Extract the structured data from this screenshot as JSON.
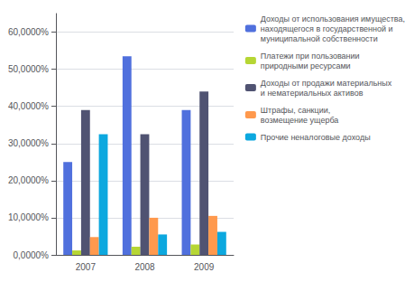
{
  "chart_data": {
    "type": "bar",
    "categories": [
      "2007",
      "2008",
      "2009"
    ],
    "series": [
      {
        "name": "Доходы от использования имущества,\nнаходящегося в государственной и\nмуниципальной собственности",
        "values": [
          0.25,
          0.535,
          0.39
        ]
      },
      {
        "name": "Платежи при пользовании\nприродными ресурсами",
        "values": [
          0.012,
          0.022,
          0.028
        ]
      },
      {
        "name": "Доходы от продажи материальных\nи нематериальных активов",
        "values": [
          0.39,
          0.325,
          0.44
        ]
      },
      {
        "name": "Штрафы, санкции,\nвозмещение ущерба",
        "values": [
          0.048,
          0.1,
          0.105
        ]
      },
      {
        "name": "Прочие неналоговые доходы",
        "values": [
          0.325,
          0.055,
          0.062
        ]
      }
    ],
    "ylim": [
      0,
      0.65
    ],
    "yticks": [
      {
        "value": 0,
        "label": "0,0000%"
      },
      {
        "value": 0.1,
        "label": "10,0000%"
      },
      {
        "value": 0.2,
        "label": "20,0000%"
      },
      {
        "value": 0.3,
        "label": "30,0000%"
      },
      {
        "value": 0.4,
        "label": "40,0000%"
      },
      {
        "value": 0.5,
        "label": "50,0000%"
      },
      {
        "value": 0.6,
        "label": "60,0000%"
      }
    ],
    "grid": true,
    "legend": "right"
  }
}
